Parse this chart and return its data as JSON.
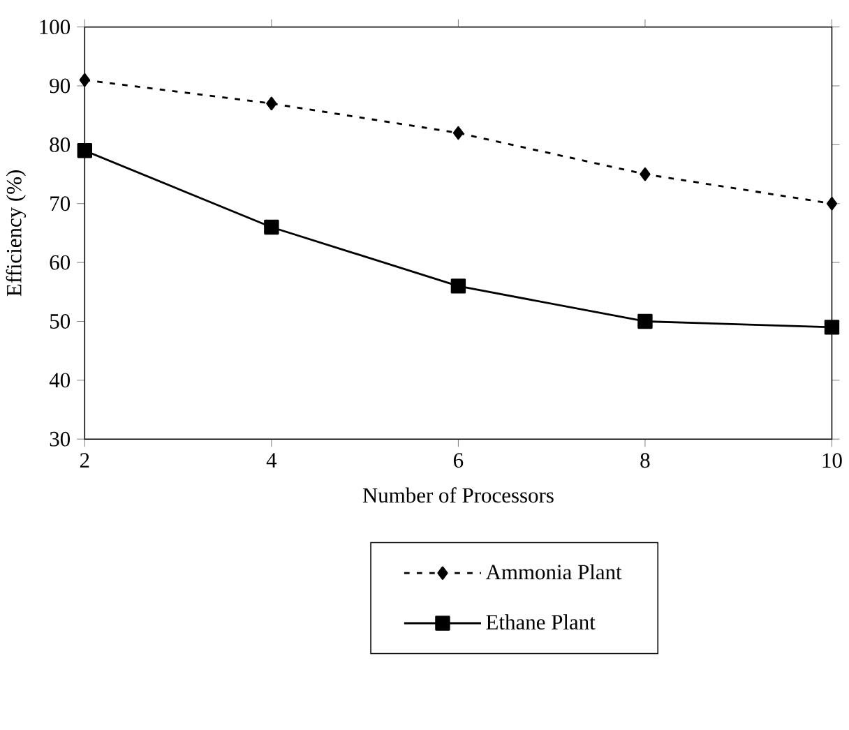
{
  "chart_data": {
    "type": "line",
    "xlabel": "Number of Processors",
    "ylabel": "Efficiency (%)",
    "x": [
      2,
      4,
      6,
      8,
      10
    ],
    "series": [
      {
        "name": "Ammonia Plant",
        "color": "#000000",
        "values": [
          91,
          87,
          82,
          75,
          70
        ],
        "marker": "diamond",
        "line_style": "dotted"
      },
      {
        "name": "Ethane Plant",
        "color": "#000000",
        "values": [
          79,
          66,
          56,
          50,
          49
        ],
        "marker": "square",
        "line_style": "solid"
      }
    ],
    "xlim": [
      2,
      10
    ],
    "ylim": [
      30,
      100
    ],
    "xticks": [
      2,
      4,
      6,
      8,
      10
    ],
    "yticks": [
      30,
      40,
      50,
      60,
      70,
      80,
      90,
      100
    ],
    "grid": false,
    "legend": "bottom"
  }
}
